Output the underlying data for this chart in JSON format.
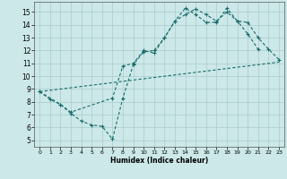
{
  "xlabel": "Humidex (Indice chaleur)",
  "background_color": "#cce8e8",
  "grid_color": "#aacccc",
  "line_color": "#1a6b6b",
  "xlim": [
    -0.5,
    23.5
  ],
  "ylim": [
    4.5,
    15.8
  ],
  "xticks": [
    0,
    1,
    2,
    3,
    4,
    5,
    6,
    7,
    8,
    9,
    10,
    11,
    12,
    13,
    14,
    15,
    16,
    17,
    18,
    19,
    20,
    21,
    22,
    23
  ],
  "yticks": [
    5,
    6,
    7,
    8,
    9,
    10,
    11,
    12,
    13,
    14,
    15
  ],
  "line1_x": [
    0,
    1,
    2,
    3,
    4,
    5,
    6,
    7,
    8,
    9,
    10,
    11,
    12,
    13,
    14,
    15,
    16,
    17,
    18,
    19,
    20,
    21
  ],
  "line1_y": [
    8.8,
    8.2,
    7.8,
    7.1,
    6.5,
    6.2,
    6.1,
    5.1,
    8.3,
    10.9,
    11.9,
    12.0,
    13.0,
    14.3,
    14.8,
    15.25,
    14.8,
    14.3,
    15.0,
    14.3,
    13.3,
    12.1
  ],
  "line2_x": [
    0,
    2,
    3,
    7,
    8,
    9,
    10,
    11,
    12,
    13,
    14,
    15,
    16,
    17,
    18,
    19,
    20,
    21,
    22,
    23
  ],
  "line2_y": [
    8.8,
    7.8,
    7.2,
    8.3,
    10.8,
    11.0,
    12.0,
    11.8,
    13.0,
    14.3,
    15.3,
    14.8,
    14.2,
    14.2,
    15.3,
    14.3,
    14.2,
    13.0,
    12.1,
    11.3
  ],
  "line3_x": [
    0,
    23
  ],
  "line3_y": [
    8.8,
    11.1
  ]
}
